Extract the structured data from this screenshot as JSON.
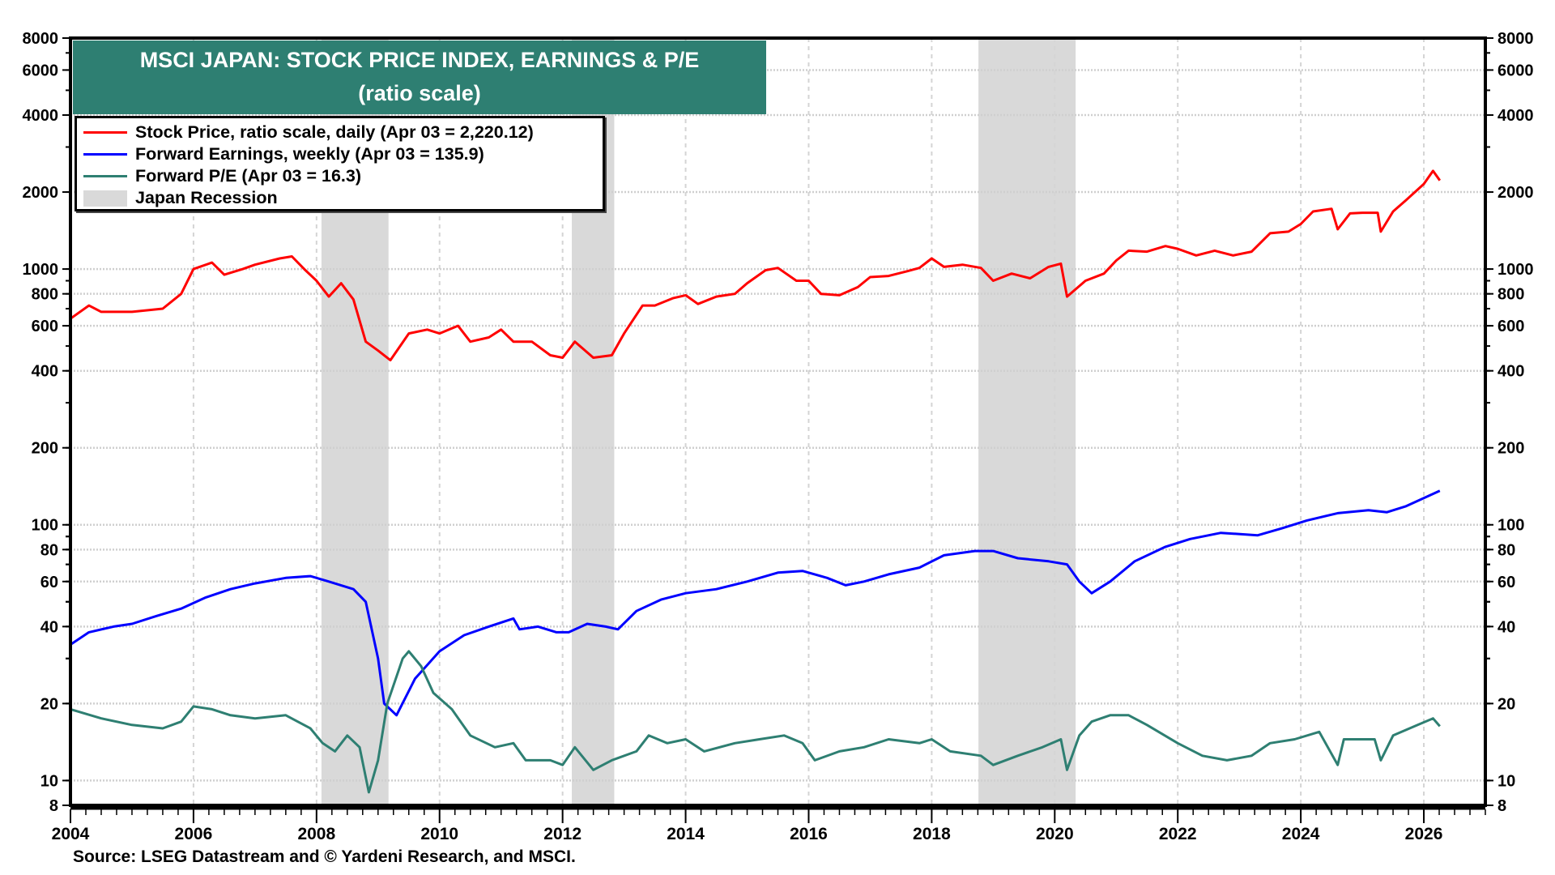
{
  "chart_data": {
    "type": "line",
    "title": "MSCI JAPAN: STOCK PRICE INDEX, EARNINGS & P/E",
    "subtitle": "(ratio scale)",
    "y_scale": "log",
    "ylim": [
      8,
      8000
    ],
    "xlim": [
      2004,
      2027
    ],
    "grid": true,
    "legend_placement": "top-left",
    "x_ticks": [
      "2004",
      "2006",
      "2008",
      "2010",
      "2012",
      "2014",
      "2016",
      "2018",
      "2020",
      "2022",
      "2024",
      "2026"
    ],
    "y_ticks": [
      8,
      10,
      20,
      40,
      60,
      80,
      100,
      200,
      400,
      600,
      800,
      1000,
      2000,
      4000,
      6000,
      8000
    ],
    "y_tick_labels": [
      "8",
      "10",
      "20",
      "40",
      "60",
      "80",
      "100",
      "200",
      "400",
      "600",
      "800",
      "1000",
      "2000",
      "4000",
      "6000",
      "8000"
    ],
    "recessions": {
      "name": "Japan Recession",
      "color": "#d9d9d9",
      "periods": [
        [
          2008.08,
          2009.17
        ],
        [
          2012.15,
          2012.84
        ],
        [
          2018.76,
          2020.34
        ]
      ]
    },
    "series": [
      {
        "name": "Stock Price, ratio scale, daily (Apr 03 = 2,220.12)",
        "color": "#ff0000",
        "x": [
          2004.0,
          2004.3,
          2004.5,
          2005.0,
          2005.5,
          2005.8,
          2006.0,
          2006.3,
          2006.5,
          2006.8,
          2007.0,
          2007.4,
          2007.6,
          2007.8,
          2008.0,
          2008.2,
          2008.4,
          2008.6,
          2008.8,
          2009.0,
          2009.2,
          2009.5,
          2009.8,
          2010.0,
          2010.3,
          2010.5,
          2010.8,
          2011.0,
          2011.2,
          2011.5,
          2011.8,
          2012.0,
          2012.2,
          2012.5,
          2012.8,
          2013.0,
          2013.3,
          2013.5,
          2013.8,
          2014.0,
          2014.2,
          2014.5,
          2014.8,
          2015.0,
          2015.3,
          2015.5,
          2015.8,
          2016.0,
          2016.2,
          2016.5,
          2016.8,
          2017.0,
          2017.3,
          2017.6,
          2017.8,
          2018.0,
          2018.2,
          2018.5,
          2018.8,
          2019.0,
          2019.3,
          2019.6,
          2019.9,
          2020.1,
          2020.2,
          2020.5,
          2020.8,
          2021.0,
          2021.2,
          2021.5,
          2021.8,
          2022.0,
          2022.3,
          2022.6,
          2022.9,
          2023.2,
          2023.5,
          2023.8,
          2024.0,
          2024.2,
          2024.5,
          2024.6,
          2024.8,
          2025.0,
          2025.25,
          2025.3,
          2025.5,
          2025.7,
          2026.0,
          2026.15,
          2026.26
        ],
        "values": [
          640,
          720,
          680,
          680,
          700,
          800,
          1000,
          1060,
          950,
          1000,
          1040,
          1100,
          1120,
          1000,
          900,
          780,
          880,
          760,
          520,
          480,
          440,
          560,
          580,
          560,
          600,
          520,
          540,
          580,
          520,
          520,
          460,
          450,
          520,
          450,
          460,
          560,
          720,
          720,
          770,
          790,
          730,
          780,
          800,
          880,
          990,
          1010,
          900,
          900,
          800,
          790,
          850,
          930,
          940,
          980,
          1010,
          1100,
          1020,
          1040,
          1010,
          900,
          960,
          920,
          1020,
          1050,
          780,
          900,
          960,
          1080,
          1180,
          1170,
          1230,
          1200,
          1130,
          1180,
          1130,
          1170,
          1380,
          1400,
          1500,
          1680,
          1720,
          1430,
          1650,
          1660,
          1660,
          1400,
          1680,
          1850,
          2150,
          2420,
          2220.12
        ]
      },
      {
        "name": "Forward Earnings, weekly (Apr 03 = 135.9)",
        "color": "#0000ff",
        "x": [
          2004.0,
          2004.3,
          2004.7,
          2005.0,
          2005.4,
          2005.8,
          2006.2,
          2006.6,
          2007.0,
          2007.5,
          2007.9,
          2008.2,
          2008.6,
          2008.8,
          2009.0,
          2009.1,
          2009.3,
          2009.6,
          2010.0,
          2010.4,
          2010.8,
          2011.2,
          2011.3,
          2011.6,
          2011.9,
          2012.1,
          2012.4,
          2012.7,
          2012.9,
          2013.2,
          2013.6,
          2014.0,
          2014.5,
          2015.0,
          2015.5,
          2015.9,
          2016.3,
          2016.6,
          2016.9,
          2017.3,
          2017.8,
          2018.2,
          2018.7,
          2019.0,
          2019.4,
          2019.9,
          2020.2,
          2020.4,
          2020.6,
          2020.9,
          2021.3,
          2021.8,
          2022.2,
          2022.7,
          2023.3,
          2023.7,
          2024.1,
          2024.6,
          2025.1,
          2025.4,
          2025.7,
          2026.26
        ],
        "values": [
          34,
          38,
          40,
          41,
          44,
          47,
          52,
          56,
          59,
          62,
          63,
          60,
          56,
          50,
          30,
          20,
          18,
          25,
          32,
          37,
          40,
          43,
          39,
          40,
          38,
          38,
          41,
          40,
          39,
          46,
          51,
          54,
          56,
          60,
          65,
          66,
          62,
          58,
          60,
          64,
          68,
          76,
          79,
          79,
          74,
          72,
          70,
          60,
          54,
          60,
          72,
          82,
          88,
          93,
          91,
          97,
          104,
          111,
          114,
          112,
          118,
          135.9
        ]
      },
      {
        "name": "Forward P/E (Apr 03 = 16.3)",
        "color": "#2e7f72",
        "x": [
          2004.0,
          2004.5,
          2005.0,
          2005.5,
          2005.8,
          2006.0,
          2006.3,
          2006.6,
          2007.0,
          2007.5,
          2007.9,
          2008.1,
          2008.3,
          2008.5,
          2008.7,
          2008.85,
          2009.0,
          2009.15,
          2009.4,
          2009.5,
          2009.7,
          2009.9,
          2010.2,
          2010.5,
          2010.9,
          2011.2,
          2011.4,
          2011.8,
          2012.0,
          2012.2,
          2012.5,
          2012.8,
          2013.2,
          2013.4,
          2013.7,
          2014.0,
          2014.3,
          2014.8,
          2015.2,
          2015.6,
          2015.9,
          2016.1,
          2016.5,
          2016.9,
          2017.3,
          2017.8,
          2018.0,
          2018.3,
          2018.8,
          2019.0,
          2019.4,
          2019.8,
          2020.1,
          2020.2,
          2020.4,
          2020.6,
          2020.9,
          2021.2,
          2021.5,
          2022.0,
          2022.4,
          2022.8,
          2023.2,
          2023.5,
          2023.9,
          2024.3,
          2024.6,
          2024.7,
          2025.2,
          2025.3,
          2025.5,
          2025.9,
          2026.15,
          2026.26
        ],
        "values": [
          19,
          17.5,
          16.5,
          16,
          17,
          19.5,
          19,
          18,
          17.5,
          18,
          16,
          14,
          13,
          15,
          13.5,
          9,
          12,
          20,
          30,
          32,
          28,
          22,
          19,
          15,
          13.5,
          14,
          12,
          12,
          11.5,
          13.5,
          11,
          12,
          13,
          15,
          14,
          14.5,
          13,
          14,
          14.5,
          15,
          14,
          12,
          13,
          13.5,
          14.5,
          14,
          14.5,
          13,
          12.5,
          11.5,
          12.5,
          13.5,
          14.5,
          11,
          15,
          17,
          18,
          18,
          16.5,
          14,
          12.5,
          12,
          12.5,
          14,
          14.5,
          15.5,
          11.5,
          14.5,
          14.5,
          12,
          15,
          16.5,
          17.5,
          16.3
        ]
      }
    ],
    "source": "Source: LSEG Datastream and © Yardeni Research, and MSCI."
  }
}
